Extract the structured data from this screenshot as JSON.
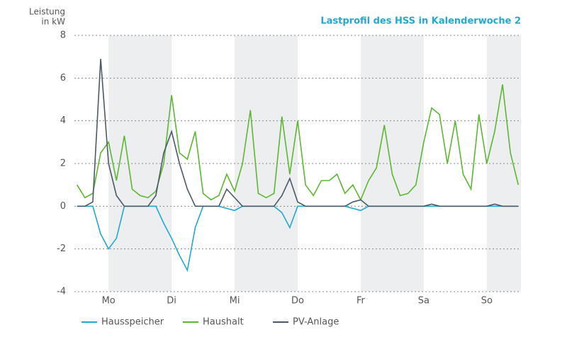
{
  "chart_data": {
    "type": "line",
    "title": "Lastprofil des HSS in Kalenderwoche 2",
    "ylabel": [
      "Leistung",
      "in kW"
    ],
    "x": [
      0,
      3,
      6,
      9,
      12,
      15,
      18,
      21,
      24,
      27,
      30,
      33,
      36,
      39,
      42,
      45,
      48,
      51,
      54,
      57,
      60,
      63,
      66,
      69,
      72,
      75,
      78,
      81,
      84,
      87,
      90,
      93,
      96,
      99,
      102,
      105,
      108,
      111,
      114,
      117,
      120,
      123,
      126,
      129,
      132,
      135,
      138,
      141,
      144,
      147,
      150,
      153,
      156,
      159,
      162,
      165,
      168
    ],
    "series": [
      {
        "name": "Haushalt",
        "color": "#5cb82f",
        "values": [
          1.0,
          0.4,
          0.6,
          2.5,
          3.0,
          1.2,
          3.3,
          0.8,
          0.5,
          0.4,
          0.7,
          2.0,
          5.2,
          2.5,
          2.2,
          3.5,
          0.6,
          0.3,
          0.5,
          1.5,
          0.7,
          2.0,
          4.5,
          0.6,
          0.4,
          0.6,
          4.2,
          1.5,
          4.0,
          1.0,
          0.5,
          1.2,
          1.2,
          1.5,
          0.6,
          1.0,
          0.3,
          1.2,
          1.8,
          3.8,
          1.5,
          0.5,
          0.6,
          1.0,
          3.0,
          4.6,
          4.3,
          2.0,
          4.0,
          1.5,
          0.8,
          4.3,
          2.0,
          3.5,
          5.7,
          2.5,
          1.0
        ]
      },
      {
        "name": "Hausspeicher",
        "color": "#1eaad2",
        "values": [
          0,
          0,
          0,
          -1.3,
          -2.0,
          -1.5,
          0,
          0,
          0,
          0,
          0,
          -0.8,
          -1.5,
          -2.3,
          -3.0,
          -1.0,
          0,
          0,
          0,
          -0.1,
          -0.2,
          0,
          0,
          0,
          0,
          0,
          -0.3,
          -1.0,
          0,
          0,
          0,
          0,
          0,
          0,
          0,
          -0.1,
          -0.2,
          0,
          0,
          0,
          0,
          0,
          0,
          0,
          0,
          0,
          0,
          0,
          0,
          0,
          0,
          0,
          0,
          0,
          0,
          0,
          0
        ]
      },
      {
        "name": "PV-Anlage",
        "color": "#4a5a66",
        "values": [
          0,
          0,
          0.2,
          6.9,
          2.0,
          0.5,
          0,
          0,
          0,
          0,
          0.5,
          2.5,
          3.5,
          2.0,
          0.8,
          0,
          0,
          0,
          0,
          0.8,
          0.4,
          0,
          0,
          0,
          0,
          0,
          0.5,
          1.3,
          0.2,
          0,
          0,
          0,
          0,
          0,
          0,
          0.2,
          0.3,
          0,
          0,
          0,
          0,
          0,
          0,
          0,
          0,
          0.1,
          0,
          0,
          0,
          0,
          0,
          0,
          0,
          0.1,
          0,
          0,
          0
        ]
      }
    ],
    "xlim": [
      -1,
      169
    ],
    "xticks": [
      {
        "value": 12,
        "label": "Mo"
      },
      {
        "value": 36,
        "label": "Di"
      },
      {
        "value": 60,
        "label": "Mi"
      },
      {
        "value": 84,
        "label": "Do"
      },
      {
        "value": 108,
        "label": "Fr"
      },
      {
        "value": 132,
        "label": "Sa"
      },
      {
        "value": 156,
        "label": "So"
      }
    ],
    "ylim": [
      -4,
      8
    ],
    "yticks": [
      -4,
      -2,
      0,
      2,
      4,
      6,
      8
    ],
    "grid": true
  }
}
